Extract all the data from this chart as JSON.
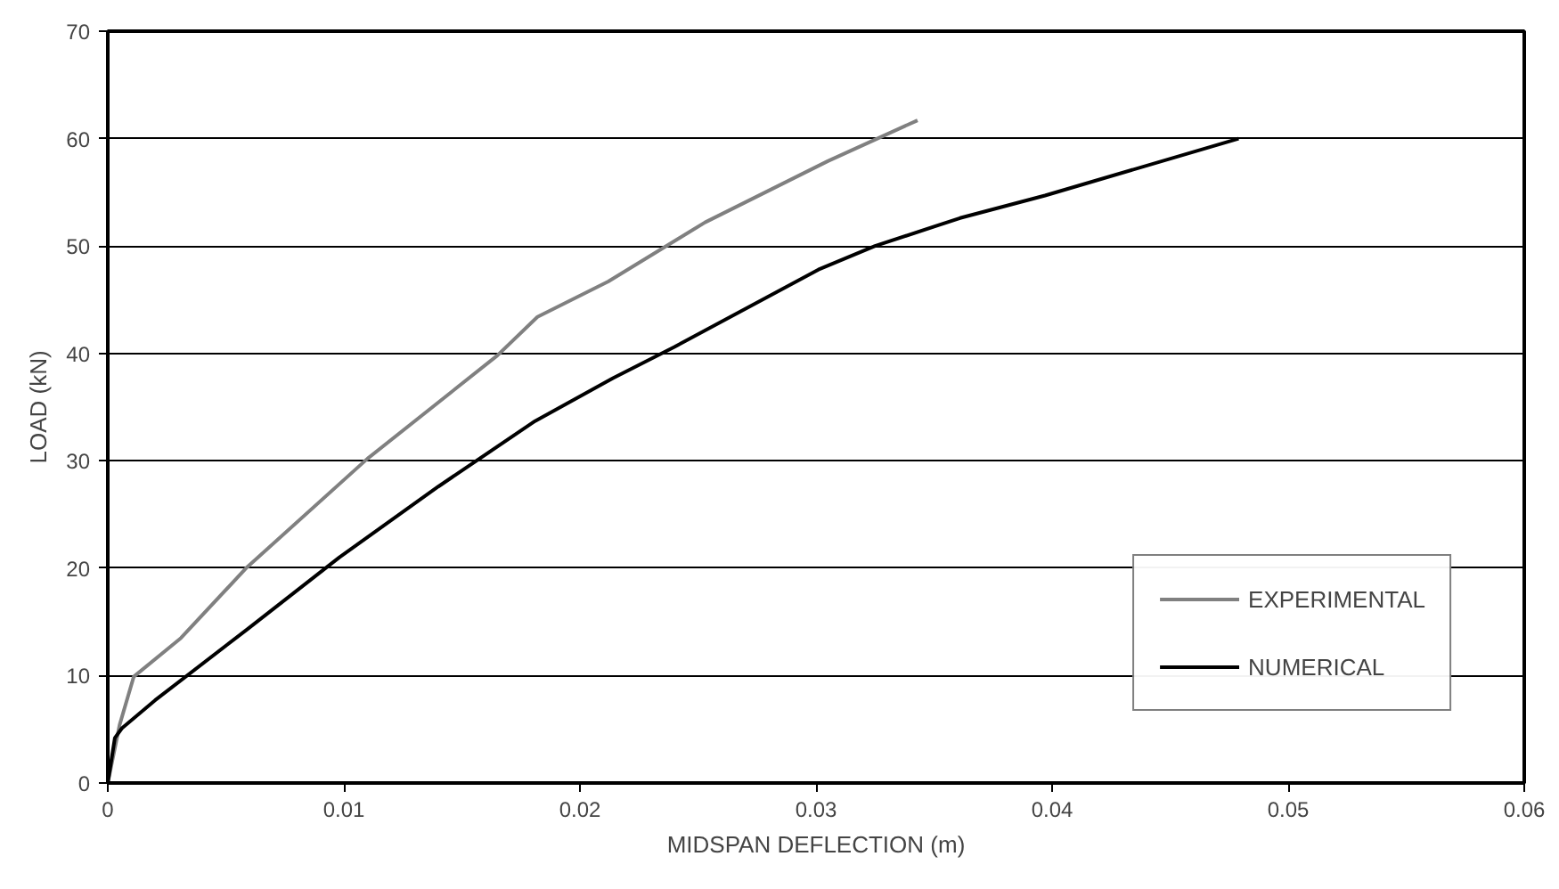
{
  "chart_data": {
    "type": "line",
    "xlabel": "MIDSPAN DEFLECTION (m)",
    "ylabel": "LOAD (kN)",
    "xlim": [
      0,
      0.06
    ],
    "ylim": [
      0,
      70
    ],
    "xticks": [
      0,
      0.01,
      0.02,
      0.03,
      0.04,
      0.05,
      0.06
    ],
    "yticks": [
      0,
      10,
      20,
      30,
      40,
      50,
      60,
      70
    ],
    "grid": "y",
    "legend": "bottom right",
    "marker": "none",
    "line_style": "solid",
    "series": [
      {
        "name": "EXPERIMENTAL",
        "color": "#808080",
        "x": [
          0,
          0.0005,
          0.0011,
          0.0031,
          0.0059,
          0.011,
          0.0165,
          0.0182,
          0.0212,
          0.0253,
          0.0305,
          0.0343
        ],
        "values": [
          0,
          5.4,
          9.9,
          13.5,
          20.1,
          30.2,
          39.8,
          43.4,
          46.7,
          52.2,
          57.9,
          61.7
        ]
      },
      {
        "name": "NUMERICAL",
        "color": "#000000",
        "x": [
          0,
          0.0003,
          0.0006,
          0.002,
          0.0059,
          0.0098,
          0.014,
          0.0181,
          0.0214,
          0.024,
          0.0301,
          0.0325,
          0.0361,
          0.0397,
          0.0479
        ],
        "values": [
          0,
          4.2,
          5.1,
          7.7,
          14.3,
          21,
          27.6,
          33.7,
          37.7,
          40.6,
          47.8,
          50.0,
          52.6,
          54.7,
          60.0
        ]
      }
    ]
  }
}
